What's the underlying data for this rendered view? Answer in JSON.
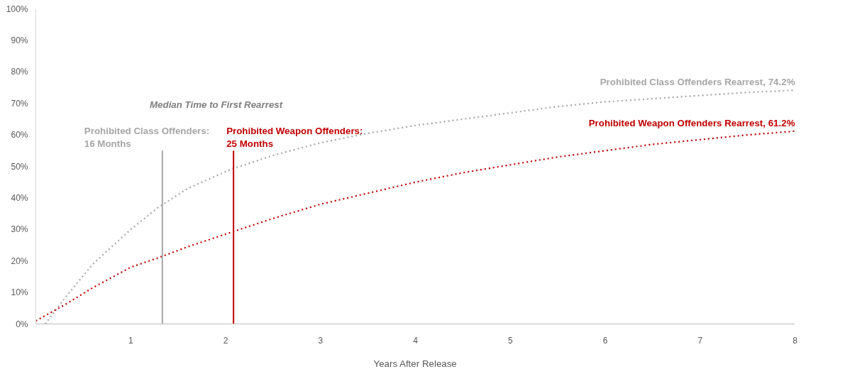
{
  "chart_data": {
    "type": "line",
    "xlabel": "Years After Release",
    "x": [
      0.1,
      0.3,
      0.6,
      1,
      1.29,
      1.6,
      2.05,
      2.5,
      3,
      3.5,
      4,
      4.5,
      5,
      5.5,
      6,
      6.5,
      7,
      7.5,
      8
    ],
    "series": [
      {
        "color": "#a6a6a6",
        "values": [
          0,
          8,
          19,
          30,
          37,
          43,
          49,
          53.5,
          57.5,
          60.5,
          63,
          65,
          67,
          69,
          70.5,
          71.5,
          72.5,
          73.5,
          74.2
        ]
      },
      {
        "color": "#c00000",
        "x": [
          0,
          0.3,
          0.6,
          1,
          1.29,
          1.6,
          2.05,
          2.5,
          3,
          3.5,
          4,
          4.5,
          5,
          5.5,
          6,
          6.5,
          7,
          7.5,
          8
        ],
        "values": [
          1,
          6,
          11.5,
          18,
          21,
          24.5,
          29,
          33.5,
          38,
          41.5,
          45,
          48,
          50.5,
          53,
          55,
          57,
          58.5,
          60,
          61.2
        ]
      }
    ],
    "xlim": [
      0,
      8
    ],
    "xticks": [
      1,
      2,
      3,
      4,
      5,
      6,
      7,
      8
    ],
    "ylim": [
      0,
      100
    ],
    "yticks": [
      {
        "value": 0,
        "label": "0%"
      },
      {
        "value": 10,
        "label": "10%"
      },
      {
        "value": 20,
        "label": "20%"
      },
      {
        "value": 30,
        "label": "30%"
      },
      {
        "value": 40,
        "label": "40%"
      },
      {
        "value": 50,
        "label": "50%"
      },
      {
        "value": 60,
        "label": "60%"
      },
      {
        "value": 70,
        "label": "70%"
      },
      {
        "value": 80,
        "label": "80%"
      },
      {
        "value": 90,
        "label": "90%"
      },
      {
        "value": 100,
        "label": "100%"
      }
    ],
    "ref_lines": [
      {
        "axis": "x",
        "value": 1.3333,
        "color": "#a6a6a6"
      },
      {
        "axis": "x",
        "value": 2.0833,
        "color": "#c00000"
      }
    ],
    "annotations": [
      "Median Time to First Rearrest",
      {
        "text": "Prohibited Class Offenders:\n16 Months",
        "x": 1.3333,
        "y": 55
      },
      {
        "text": "Prohibited Weapon Offenders:\n25 Months",
        "x": 2.0833,
        "y": 55
      },
      {
        "text": "Prohibited Class Offenders Rearrest, 74.2%",
        "x": 8,
        "y": 74.2
      },
      {
        "text": "Prohibited Weapon Offenders Rearrest, 61.2%",
        "x": 8,
        "y": 61.2
      }
    ],
    "grid": false,
    "marker": "none",
    "line_style": "dotted"
  }
}
